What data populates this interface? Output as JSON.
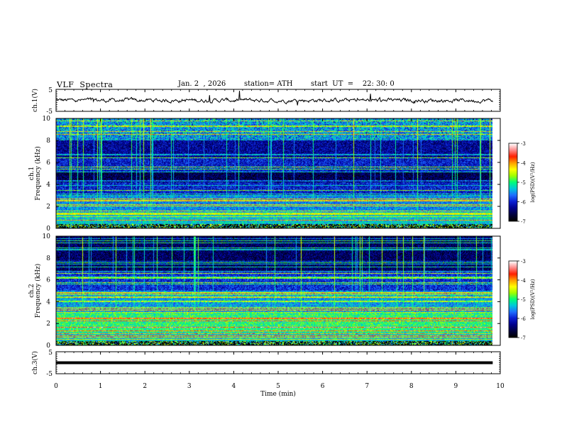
{
  "header": {
    "title": "VLF  Spectra",
    "date": "Jan. 2  , 2026",
    "station": "station= ATH",
    "start_ut": "start  UT  =    22: 30: 0"
  },
  "chart_data": [
    {
      "type": "line",
      "id": "ch1-waveform",
      "ylabel": "ch.1(V)",
      "ylim": [
        -5,
        5
      ],
      "yticks": [
        "5",
        "-5"
      ],
      "xlim": [
        0,
        10
      ],
      "trace_color": "#000000"
    },
    {
      "type": "heatmap",
      "id": "ch1-spectrogram",
      "ylabel_lines": [
        "ch.1",
        "Frequency (kHz)"
      ],
      "ylim": [
        0,
        10
      ],
      "yticks": [
        "10",
        "8",
        "6",
        "4",
        "2",
        "0"
      ],
      "xlim": [
        0,
        10
      ],
      "data_extent_min": 9.83,
      "colorbar": {
        "label": "log(PSD)(V²/Hz)",
        "range": [
          -7,
          -3
        ],
        "ticks": [
          "-3",
          "-4",
          "-5",
          "-6",
          "-7"
        ]
      }
    },
    {
      "type": "heatmap",
      "id": "ch2-spectrogram",
      "ylabel_lines": [
        "ch.2",
        "Frequency (kHz)"
      ],
      "ylim": [
        0,
        10
      ],
      "yticks": [
        "10",
        "8",
        "6",
        "4",
        "2",
        "0"
      ],
      "xlim": [
        0,
        10
      ],
      "data_extent_min": 9.83,
      "colorbar": {
        "label": "log(PSD)(V²/Hz)",
        "range": [
          -7,
          -3
        ],
        "ticks": [
          "-3",
          "-4",
          "-5",
          "-6",
          "-7"
        ]
      }
    },
    {
      "type": "line",
      "id": "ch3-waveform",
      "ylabel": "ch.3(V)",
      "ylim": [
        -5,
        5
      ],
      "yticks": [
        "5",
        "-5"
      ],
      "xlim": [
        0,
        10
      ],
      "constant_value": 0,
      "trace_color": "#000000"
    }
  ],
  "xaxis": {
    "label": "Time  (min)",
    "ticks": [
      "0",
      "1",
      "2",
      "3",
      "4",
      "5",
      "6",
      "7",
      "8",
      "9",
      "10"
    ]
  },
  "colormap": [
    "#000000",
    "#000040",
    "#00008c",
    "#0a1ed2",
    "#1e6eff",
    "#00c8dc",
    "#00ff78",
    "#a0ff00",
    "#ffff00",
    "#ffa000",
    "#ff1e00",
    "#ff8c8c",
    "#ffffff"
  ]
}
